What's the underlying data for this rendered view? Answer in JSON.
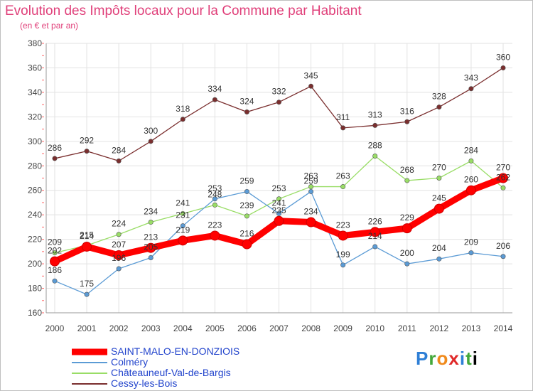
{
  "title": "Evolution des Impôts locaux pour la Commune par Habitant",
  "subtitle": "(en € et par an)",
  "logo_text": "Proxiti",
  "chart_data": {
    "type": "line",
    "x": [
      "2000",
      "2001",
      "2002",
      "2003",
      "2004",
      "2005",
      "2006",
      "2007",
      "2008",
      "2009",
      "2010",
      "2011",
      "2012",
      "2013",
      "2014"
    ],
    "ylim": [
      160,
      380
    ],
    "yticks": [
      160,
      180,
      200,
      220,
      240,
      260,
      280,
      300,
      320,
      340,
      360,
      380
    ],
    "grid": true,
    "legend_position": "bottom-left",
    "series": [
      {
        "name": "SAINT-MALO-EN-DONZIOIS",
        "color": "#ff0000",
        "values": [
          202,
          214,
          207,
          213,
          219,
          223,
          216,
          235,
          234,
          223,
          226,
          229,
          245,
          260,
          270
        ]
      },
      {
        "name": "Colméry",
        "color": "#5b9bd5",
        "values": [
          186,
          175,
          196,
          205,
          231,
          253,
          259,
          241,
          259,
          199,
          214,
          200,
          204,
          209,
          206
        ]
      },
      {
        "name": "Châteauneuf-Val-de-Bargis",
        "color": "#99dd66",
        "values": [
          209,
          215,
          224,
          234,
          241,
          248,
          239,
          253,
          263,
          263,
          288,
          268,
          270,
          284,
          262
        ]
      },
      {
        "name": "Cessy-les-Bois",
        "color": "#7a2e2e",
        "values": [
          286,
          292,
          284,
          300,
          318,
          334,
          324,
          332,
          345,
          311,
          313,
          316,
          328,
          343,
          360
        ]
      }
    ]
  }
}
